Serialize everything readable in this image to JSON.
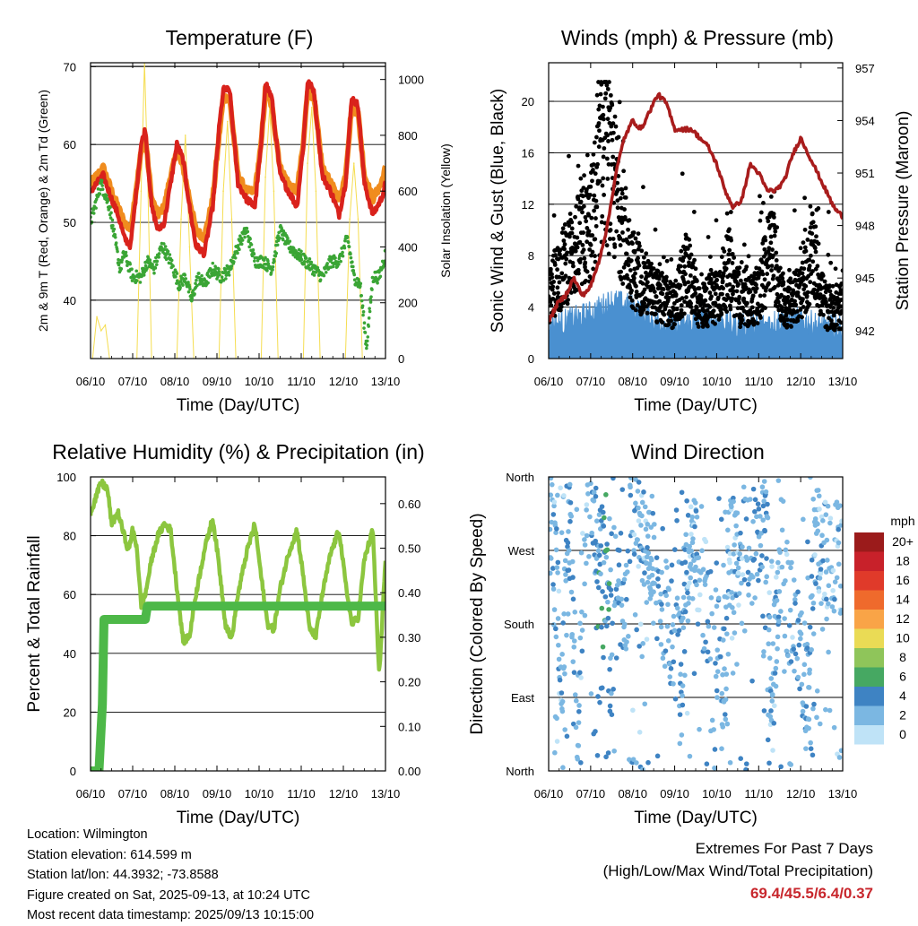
{
  "chart_data": [
    {
      "type": "line",
      "id": "temperature",
      "title": "Temperature (F)",
      "xlabel": "Time (Day/UTC)",
      "ylabel": "2m & 9m T (Red, Orange) & 2m Td (Green)",
      "y2label": "Solar Insolation (Yellow)",
      "x_ticks": [
        "06/10",
        "07/10",
        "08/10",
        "09/10",
        "10/10",
        "11/10",
        "12/10",
        "13/10"
      ],
      "xlim": [
        0,
        7
      ],
      "ylim": [
        32.5,
        70.5
      ],
      "y_ticks": [
        40,
        50,
        60,
        70
      ],
      "y2lim": [
        0,
        1060
      ],
      "y2_ticks": [
        0,
        200,
        400,
        600,
        800,
        1000
      ],
      "grid": "horizontal",
      "series": [
        {
          "name": "2m T",
          "color": "#d9221c",
          "axis": "left",
          "x": [
            0,
            0.15,
            0.3,
            0.5,
            0.65,
            0.8,
            0.95,
            1.05,
            1.2,
            1.3,
            1.45,
            1.6,
            1.75,
            1.9,
            2.05,
            2.2,
            2.35,
            2.5,
            2.7,
            2.9,
            3.05,
            3.15,
            3.3,
            3.5,
            3.7,
            3.9,
            4.05,
            4.15,
            4.3,
            4.5,
            4.7,
            4.9,
            5.05,
            5.15,
            5.3,
            5.5,
            5.7,
            5.9,
            6.05,
            6.2,
            6.35,
            6.5,
            6.7,
            6.9,
            7.0
          ],
          "y": [
            54,
            55,
            56,
            53,
            51,
            48,
            47,
            52,
            60,
            62,
            52,
            49,
            50,
            55,
            60,
            58,
            52,
            47,
            46,
            52,
            62,
            67,
            67,
            55,
            53,
            52,
            60,
            68,
            66,
            56,
            54,
            52,
            60,
            68,
            67,
            56,
            54,
            51,
            55,
            66,
            65,
            55,
            51,
            53,
            55
          ]
        },
        {
          "name": "9m T",
          "color": "#f08c1e",
          "axis": "left",
          "x": [
            0,
            0.15,
            0.3,
            0.5,
            0.65,
            0.8,
            0.95,
            1.05,
            1.2,
            1.3,
            1.45,
            1.6,
            1.75,
            1.9,
            2.05,
            2.2,
            2.35,
            2.5,
            2.7,
            2.9,
            3.05,
            3.15,
            3.3,
            3.5,
            3.7,
            3.9,
            4.05,
            4.15,
            4.3,
            4.5,
            4.7,
            4.9,
            5.05,
            5.15,
            5.3,
            5.5,
            5.7,
            5.9,
            6.05,
            6.2,
            6.35,
            6.5,
            6.7,
            6.9,
            7.0
          ],
          "y": [
            55,
            56,
            57,
            54,
            52,
            50,
            49,
            53,
            59,
            61,
            53,
            51,
            52,
            56,
            59,
            57,
            53,
            49,
            48,
            53,
            61,
            66,
            66,
            56,
            54,
            54,
            60,
            67,
            65,
            57,
            55,
            54,
            60,
            67,
            66,
            57,
            55,
            53,
            56,
            65,
            64,
            56,
            53,
            55,
            57
          ]
        },
        {
          "name": "2m Td",
          "color": "#3aa535",
          "axis": "left",
          "x": [
            0,
            0.1,
            0.25,
            0.45,
            0.6,
            0.7,
            0.8,
            1.0,
            1.2,
            1.35,
            1.5,
            1.7,
            1.9,
            2.1,
            2.25,
            2.4,
            2.55,
            2.7,
            2.9,
            3.1,
            3.3,
            3.5,
            3.7,
            3.9,
            4.1,
            4.3,
            4.5,
            4.7,
            4.9,
            5.1,
            5.3,
            5.5,
            5.7,
            5.9,
            6.1,
            6.25,
            6.4,
            6.55,
            6.7,
            6.85,
            7.0
          ],
          "y": [
            50,
            52,
            55,
            52,
            47,
            44,
            46,
            43,
            43,
            45,
            44,
            47,
            45,
            42,
            43,
            40,
            43,
            42,
            44,
            43,
            44,
            47,
            49,
            45,
            45,
            44,
            49,
            47,
            46,
            45,
            44,
            43,
            45,
            45,
            48,
            43,
            42,
            34,
            43,
            43,
            46
          ]
        },
        {
          "name": "Solar Insolation",
          "color": "#f5dd50",
          "axis": "right",
          "x": [
            0.05,
            0.15,
            0.25,
            0.35,
            0.45,
            1.1,
            1.2,
            1.28,
            1.35,
            1.45,
            2.05,
            2.15,
            2.25,
            2.35,
            2.45,
            3.05,
            3.15,
            3.25,
            3.35,
            3.45,
            4.05,
            4.15,
            4.25,
            4.35,
            4.45,
            5.05,
            5.15,
            5.25,
            5.35,
            5.45,
            6.05,
            6.15,
            6.25,
            6.35,
            6.45
          ],
          "y": [
            0,
            150,
            100,
            120,
            0,
            0,
            600,
            1060,
            700,
            0,
            0,
            500,
            800,
            400,
            0,
            0,
            600,
            850,
            500,
            0,
            0,
            650,
            900,
            600,
            0,
            0,
            700,
            900,
            600,
            0,
            0,
            500,
            700,
            500,
            0
          ]
        }
      ]
    },
    {
      "type": "scatter",
      "id": "winds",
      "title": "Winds (mph) & Pressure (mb)",
      "xlabel": "Time (Day/UTC)",
      "ylabel": "Sonic Wind & Gust (Blue, Black)",
      "y2label": "Station Pressure (Maroon)",
      "x_ticks": [
        "06/10",
        "07/10",
        "08/10",
        "09/10",
        "10/10",
        "11/10",
        "12/10",
        "13/10"
      ],
      "xlim": [
        0,
        7
      ],
      "ylim": [
        0,
        23
      ],
      "y_ticks": [
        0,
        4,
        8,
        12,
        16,
        20
      ],
      "y2lim": [
        940.4,
        957.3
      ],
      "y2_ticks": [
        942,
        945,
        948,
        951,
        954,
        957
      ],
      "grid": "horizontal",
      "series": [
        {
          "name": "Sonic Wind",
          "color": "#4a90d0",
          "axis": "left",
          "style": "band",
          "x": [
            0,
            0.5,
            1.0,
            1.5,
            2.0,
            2.5,
            3.0,
            3.5,
            4.0,
            4.5,
            5.0,
            5.5,
            6.0,
            6.5,
            7.0
          ],
          "y": [
            2,
            2.5,
            3,
            4,
            3.5,
            2.5,
            2,
            2.5,
            2.5,
            2,
            2,
            2.5,
            2.5,
            2,
            2
          ]
        },
        {
          "name": "Gust",
          "color": "#000000",
          "axis": "left",
          "style": "points",
          "x": [
            0,
            0.5,
            1.0,
            1.3,
            1.6,
            2.0,
            2.5,
            3.0,
            3.3,
            3.6,
            4.0,
            4.3,
            4.6,
            5.0,
            5.3,
            5.6,
            6.0,
            6.3,
            6.6,
            7.0
          ],
          "y": [
            5,
            8,
            10,
            16,
            13,
            7,
            5,
            4,
            7,
            4,
            5,
            7,
            4,
            5,
            9,
            4,
            5,
            8,
            4,
            4
          ]
        },
        {
          "name": "Station Pressure",
          "color": "#a81c1c",
          "axis": "right",
          "x": [
            0,
            0.2,
            0.4,
            0.6,
            0.8,
            1.0,
            1.2,
            1.4,
            1.6,
            1.8,
            2.0,
            2.2,
            2.4,
            2.6,
            2.8,
            3.0,
            3.2,
            3.4,
            3.6,
            3.8,
            4.0,
            4.2,
            4.4,
            4.6,
            4.8,
            5.0,
            5.2,
            5.4,
            5.6,
            5.8,
            6.0,
            6.2,
            6.4,
            6.6,
            6.8,
            7.0
          ],
          "y": [
            942.5,
            943.5,
            944,
            945,
            944,
            944.5,
            946,
            948,
            951,
            953,
            954,
            953.5,
            954.5,
            955.5,
            955,
            953.5,
            953.5,
            953.5,
            953,
            952.5,
            951.5,
            950,
            949,
            949.5,
            951.5,
            951,
            950,
            950,
            950.5,
            952,
            953,
            952,
            951,
            950,
            949,
            948.5
          ]
        }
      ]
    },
    {
      "type": "line",
      "id": "humidity",
      "title": "Relative Humidity (%) & Precipitation (in)",
      "xlabel": "Time (Day/UTC)",
      "ylabel": "Percent & Total Rainfall",
      "x_ticks": [
        "06/10",
        "07/10",
        "08/10",
        "09/10",
        "10/10",
        "11/10",
        "12/10",
        "13/10"
      ],
      "xlim": [
        0,
        7
      ],
      "ylim": [
        0,
        100
      ],
      "y_ticks": [
        0,
        20,
        40,
        60,
        80,
        100
      ],
      "y2lim": [
        0,
        0.66
      ],
      "y2_ticks": [
        "0.00",
        "0.10",
        "0.20",
        "0.30",
        "0.40",
        "0.50",
        "0.60"
      ],
      "grid": "horizontal",
      "series": [
        {
          "name": "Relative Humidity",
          "color": "#8cc63f",
          "axis": "left",
          "x": [
            0,
            0.1,
            0.25,
            0.4,
            0.5,
            0.65,
            0.8,
            0.9,
            1.0,
            1.1,
            1.2,
            1.3,
            1.45,
            1.6,
            1.75,
            1.9,
            2.05,
            2.2,
            2.35,
            2.5,
            2.7,
            2.9,
            3.05,
            3.2,
            3.35,
            3.5,
            3.7,
            3.9,
            4.05,
            4.2,
            4.35,
            4.5,
            4.7,
            4.9,
            5.05,
            5.2,
            5.35,
            5.5,
            5.7,
            5.9,
            6.05,
            6.2,
            6.35,
            6.5,
            6.7,
            6.85,
            7.0
          ],
          "y": [
            88,
            92,
            98,
            96,
            84,
            88,
            80,
            75,
            82,
            76,
            56,
            60,
            72,
            80,
            84,
            82,
            62,
            44,
            46,
            60,
            75,
            86,
            70,
            50,
            45,
            60,
            74,
            84,
            66,
            50,
            48,
            62,
            74,
            82,
            66,
            48,
            46,
            60,
            74,
            82,
            64,
            50,
            52,
            72,
            82,
            32,
            72
          ]
        },
        {
          "name": "Total Rainfall",
          "color": "#4db848",
          "axis": "right",
          "x": [
            0,
            0.2,
            0.28,
            0.32,
            0.4,
            1.0,
            1.3,
            1.35,
            7.0
          ],
          "y": [
            0,
            0,
            0.15,
            0.34,
            0.34,
            0.34,
            0.34,
            0.37,
            0.37
          ]
        }
      ]
    },
    {
      "type": "scatter",
      "id": "direction",
      "title": "Wind Direction",
      "xlabel": "Time (Day/UTC)",
      "ylabel": "Direction (Colored By Speed)",
      "x_ticks": [
        "06/10",
        "07/10",
        "08/10",
        "09/10",
        "10/10",
        "11/10",
        "12/10",
        "13/10"
      ],
      "xlim": [
        0,
        7
      ],
      "ylim": [
        0,
        360
      ],
      "y_tick_labels": [
        "North",
        "East",
        "South",
        "West",
        "North"
      ],
      "y_tick_values": [
        0,
        90,
        180,
        270,
        360
      ],
      "grid": "horizontal",
      "legend": {
        "title": "mph",
        "placement": "right",
        "labels": [
          "20+",
          "18",
          "16",
          "14",
          "12",
          "10",
          "8",
          "6",
          "4",
          "2",
          "0"
        ],
        "colors": [
          "#9b1b1b",
          "#c8212a",
          "#e03a2a",
          "#ef6a2c",
          "#f9a447",
          "#eadb55",
          "#8fc55a",
          "#46a862",
          "#3e83c3",
          "#7bb7e2",
          "#bfe3f7"
        ]
      },
      "series": [
        {
          "name": "Direction",
          "axis": "left",
          "x": [
            0.1,
            0.3,
            0.5,
            0.7,
            0.9,
            1.2,
            1.4,
            1.6,
            1.8,
            2.0,
            2.2,
            2.4,
            3.2,
            3.3,
            3.5,
            4.2,
            4.3,
            4.5,
            5.2,
            5.3,
            5.5,
            6.2,
            6.3,
            6.5
          ],
          "y": [
            300,
            120,
            290,
            60,
            310,
            280,
            230,
            260,
            180,
            330,
            300,
            260,
            120,
            280,
            260,
            110,
            270,
            260,
            300,
            70,
            250,
            100,
            270,
            260
          ],
          "speed": [
            2,
            2,
            3,
            2,
            2,
            4,
            4,
            3,
            3,
            2,
            2,
            2,
            3,
            2,
            2,
            3,
            2,
            2,
            3,
            2,
            2,
            3,
            2,
            2
          ]
        }
      ]
    }
  ],
  "footer": {
    "location": "Location: Wilmington",
    "elevation": "Station elevation: 614.599 m",
    "latlon": "Station lat/lon: 44.3932; -73.8588",
    "created": "Figure created on Sat, 2025-09-13, at 10:24 UTC",
    "recent": "Most recent data timestamp: 2025/09/13 10:15:00",
    "extremes_title": "Extremes For Past 7 Days",
    "extremes_subtitle": "(High/Low/Max Wind/Total Precipitation)",
    "extremes_values": "69.4/45.5/6.4/0.37"
  }
}
